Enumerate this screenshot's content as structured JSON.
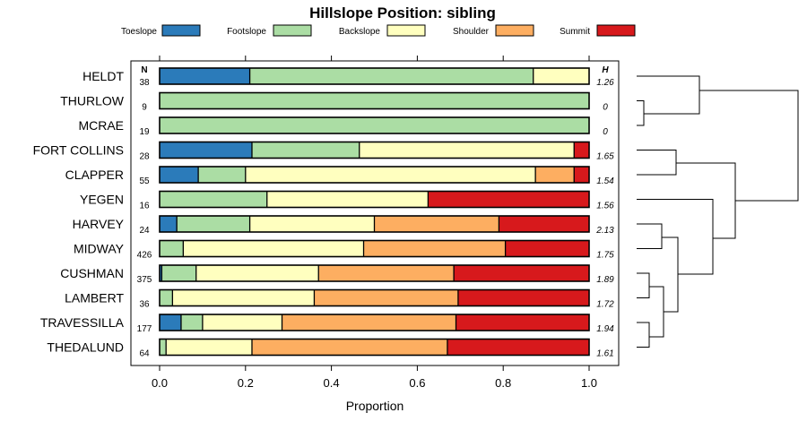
{
  "chart_data": {
    "type": "stacked-bar",
    "title": "Hillslope Position: sibling",
    "xlabel": "Proportion",
    "xlim": [
      0,
      1
    ],
    "xticks": [
      "0.0",
      "0.2",
      "0.4",
      "0.6",
      "0.8",
      "1.0"
    ],
    "n_header": "N",
    "h_header": "H",
    "legend": [
      {
        "name": "Toeslope",
        "color": "#2B7BBA"
      },
      {
        "name": "Footslope",
        "color": "#ABDDA4"
      },
      {
        "name": "Backslope",
        "color": "#FFFFBF"
      },
      {
        "name": "Shoulder",
        "color": "#FDAE61"
      },
      {
        "name": "Summit",
        "color": "#D7191C"
      }
    ],
    "rows": [
      {
        "label": "HELDT",
        "n": "38",
        "h": "1.26",
        "values": [
          0.21,
          0.66,
          0.13,
          0,
          0
        ]
      },
      {
        "label": "THURLOW",
        "n": "9",
        "h": "0",
        "values": [
          0,
          1.0,
          0,
          0,
          0
        ]
      },
      {
        "label": "MCRAE",
        "n": "19",
        "h": "0",
        "values": [
          0,
          1.0,
          0,
          0,
          0
        ]
      },
      {
        "label": "FORT COLLINS",
        "n": "28",
        "h": "1.65",
        "values": [
          0.215,
          0.25,
          0.5,
          0,
          0.035
        ]
      },
      {
        "label": "CLAPPER",
        "n": "55",
        "h": "1.54",
        "values": [
          0.09,
          0.11,
          0.675,
          0.09,
          0.035
        ]
      },
      {
        "label": "YEGEN",
        "n": "16",
        "h": "1.56",
        "values": [
          0,
          0.25,
          0.375,
          0,
          0.375
        ]
      },
      {
        "label": "HARVEY",
        "n": "24",
        "h": "2.13",
        "values": [
          0.04,
          0.17,
          0.29,
          0.29,
          0.21
        ]
      },
      {
        "label": "MIDWAY",
        "n": "426",
        "h": "1.75",
        "values": [
          0,
          0.055,
          0.42,
          0.33,
          0.195
        ]
      },
      {
        "label": "CUSHMAN",
        "n": "375",
        "h": "1.89",
        "values": [
          0.005,
          0.08,
          0.285,
          0.315,
          0.315
        ]
      },
      {
        "label": "LAMBERT",
        "n": "36",
        "h": "1.72",
        "values": [
          0,
          0.03,
          0.33,
          0.335,
          0.305
        ]
      },
      {
        "label": "TRAVESSILLA",
        "n": "177",
        "h": "1.94",
        "values": [
          0.05,
          0.05,
          0.185,
          0.405,
          0.31
        ]
      },
      {
        "label": "THEDALUND",
        "n": "64",
        "h": "1.61",
        "values": [
          0,
          0.015,
          0.2,
          0.455,
          0.33
        ]
      }
    ]
  }
}
